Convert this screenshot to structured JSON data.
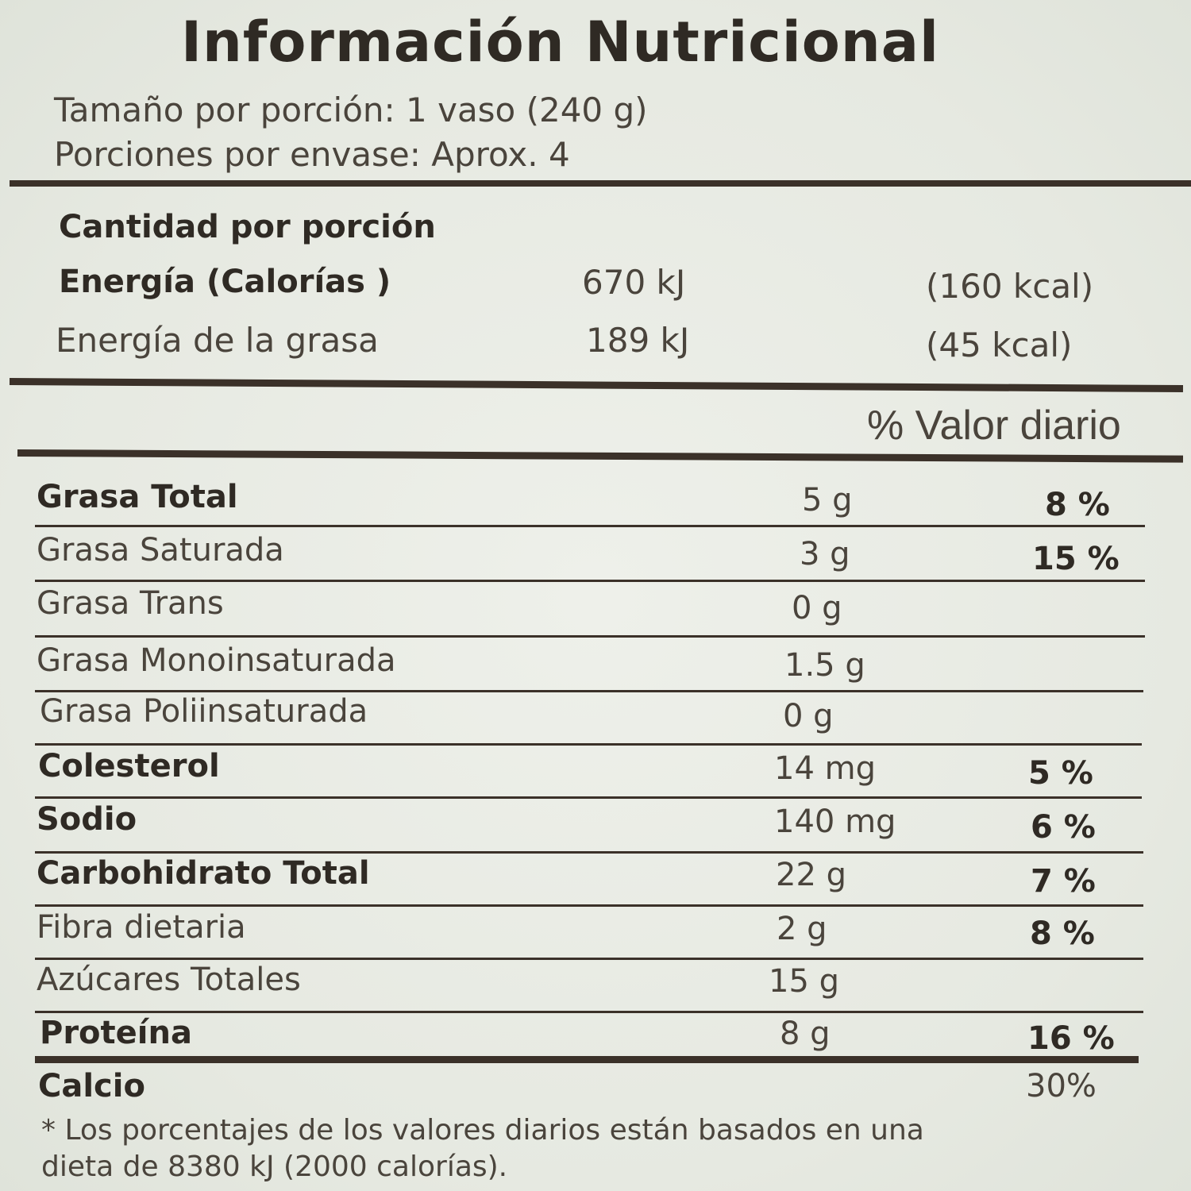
{
  "title": "Información Nutricional",
  "serving": {
    "size": "Tamaño por porción: 1 vaso (240 g)",
    "per_container": "Porciones por envase: Aprox. 4"
  },
  "amount_per_serving": "Cantidad por porción",
  "energy": {
    "label": "Energía  (Calorías )",
    "kj": "670 kJ",
    "kcal": "(160 kcal)"
  },
  "fat_energy": {
    "label": "Energía de la grasa",
    "kj": "189 kJ",
    "kcal": "(45 kcal)"
  },
  "daily_value_header": "% Valor diario",
  "nutrients": [
    {
      "name": "Grasa Total",
      "amount": "5 g",
      "dv": "8 %"
    },
    {
      "name": "Grasa Saturada",
      "amount": "3 g",
      "dv": "15 %"
    },
    {
      "name": "Grasa Trans",
      "amount": "0 g",
      "dv": ""
    },
    {
      "name": "Grasa Monoinsaturada",
      "amount": "1.5 g",
      "dv": ""
    },
    {
      "name": "Grasa Poliinsaturada",
      "amount": "0 g",
      "dv": ""
    },
    {
      "name": "Colesterol",
      "amount": "14 mg",
      "dv": "5 %"
    },
    {
      "name": "Sodio",
      "amount": "140 mg",
      "dv": "6 %"
    },
    {
      "name": "Carbohidrato Total",
      "amount": "22 g",
      "dv": "7 %"
    },
    {
      "name": "Fibra dietaria",
      "amount": "2 g",
      "dv": "8 %"
    },
    {
      "name": "Azúcares Totales",
      "amount": "15 g",
      "dv": ""
    },
    {
      "name": "Proteína",
      "amount": "8 g",
      "dv": "16 %"
    },
    {
      "name": "Calcio",
      "amount": "",
      "dv": "30%"
    }
  ],
  "footnote": {
    "line1": "* Los  porcentajes  de  los valores  diarios  están basados en una",
    "line2": "dieta  de 8380 kJ (2000  calorías)."
  }
}
